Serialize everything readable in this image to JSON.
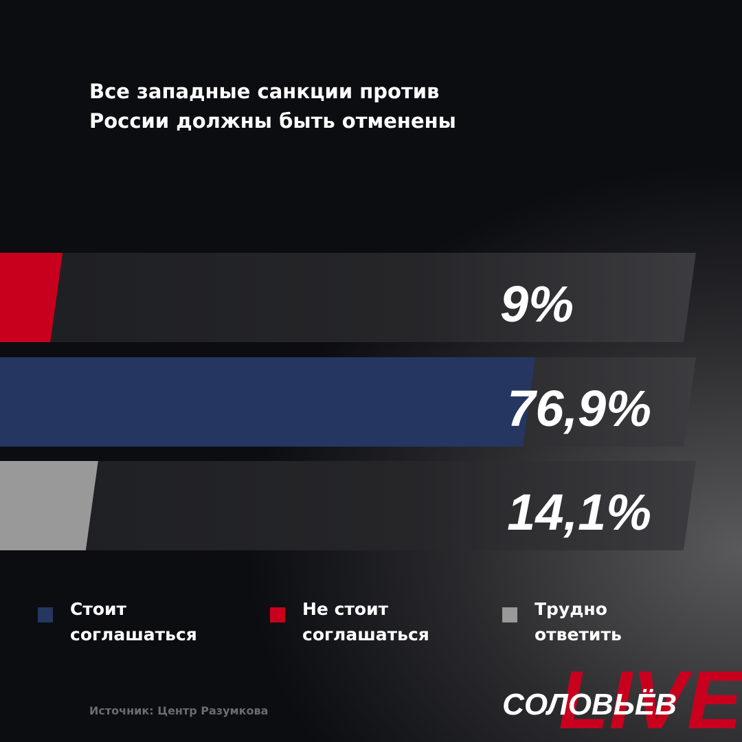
{
  "chart_data": {
    "type": "hbar",
    "title": "Все западные санкции против России должны быть отменены",
    "values": [
      9,
      76.9,
      14.1
    ],
    "value_labels": [
      "9%",
      "76,9%",
      "14,1%"
    ],
    "colors": [
      "#c8001e",
      "#253761",
      "#999999"
    ],
    "xlim": [
      0,
      100
    ],
    "legend": [
      {
        "name": "Стоит соглашаться",
        "color": "#253761"
      },
      {
        "name": "Не стоит соглашаться",
        "color": "#c8001e"
      },
      {
        "name": "Трудно ответить",
        "color": "#999999"
      }
    ],
    "source": "Источник: Центр Разумкова",
    "logo": {
      "name": "СОЛОВЬЁВ",
      "live": "LIVE"
    }
  }
}
